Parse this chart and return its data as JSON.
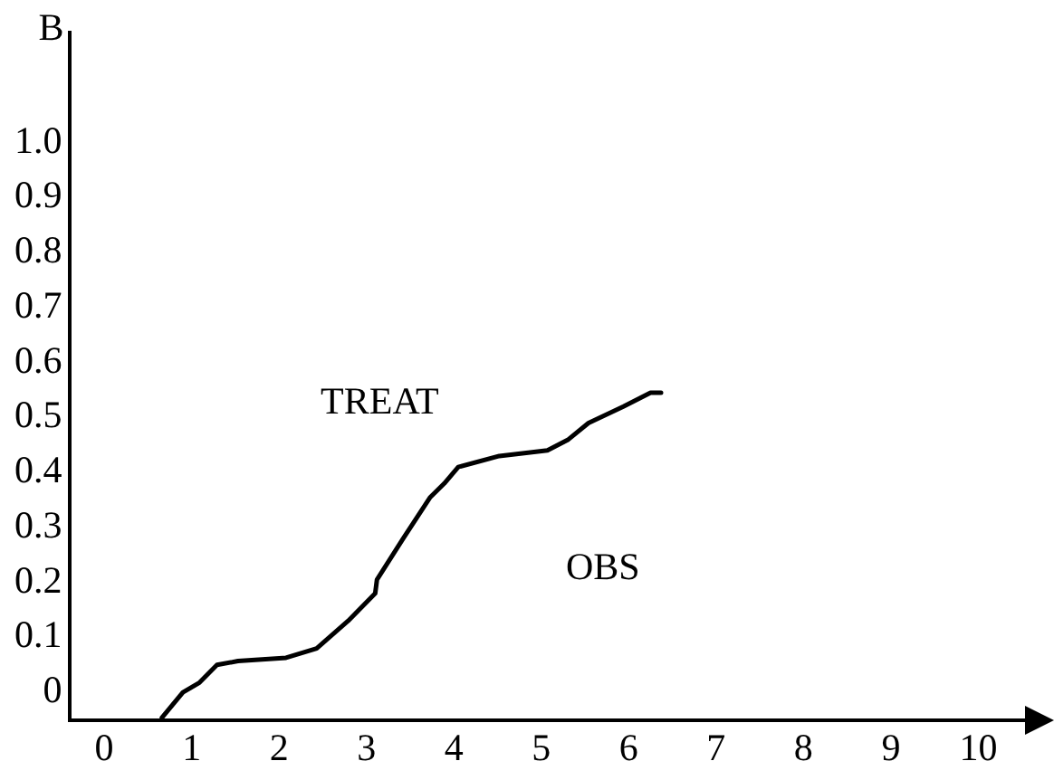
{
  "chart_data": {
    "type": "line",
    "ylabel": "B",
    "x": [
      0.66,
      0.9,
      1.09,
      1.29,
      1.53,
      2.08,
      2.43,
      2.79,
      3.1,
      3.12,
      3.42,
      3.73,
      3.89,
      4.05,
      4.52,
      5.07,
      5.31,
      5.54,
      5.94,
      6.25,
      6.37
    ],
    "series": [
      {
        "color": "#000000",
        "values": [
          -0.046,
          0,
          0.018,
          0.05,
          0.057,
          0.063,
          0.08,
          0.13,
          0.18,
          0.205,
          0.28,
          0.355,
          0.38,
          0.41,
          0.43,
          0.44,
          0.46,
          0.49,
          0.52,
          0.545,
          0.545
        ]
      }
    ],
    "xlim": [
      -0.4,
      10.7
    ],
    "xticks": [
      0,
      1,
      2,
      3,
      4,
      5,
      6,
      7,
      8,
      9,
      10
    ],
    "ylim": [
      -0.05,
      1.2
    ],
    "yticks": [
      0,
      0.1,
      0.2,
      0.3,
      0.4,
      0.5,
      0.6,
      0.7,
      0.8,
      0.9,
      {
        "value": 1,
        "label": "1.0"
      }
    ],
    "annotations": [
      "TREAT",
      "OBS"
    ],
    "grid": false,
    "legend": false,
    "marker": "none",
    "line_style": "solid"
  }
}
